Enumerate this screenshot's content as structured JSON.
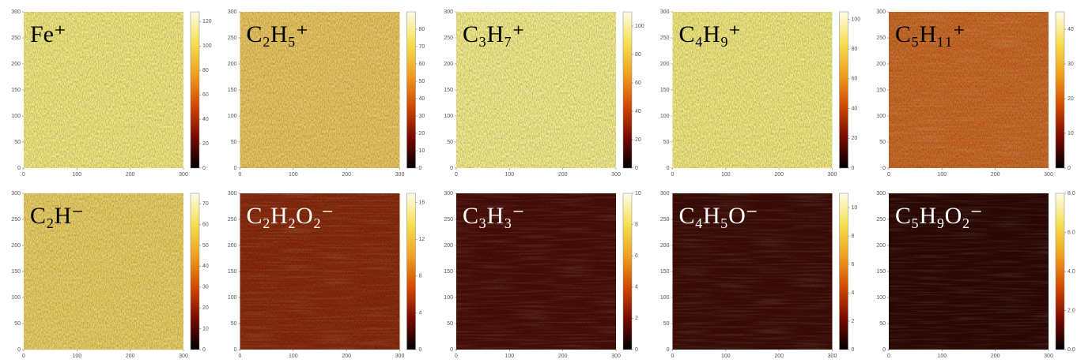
{
  "colormap": [
    "#000000",
    "#7a0a00",
    "#d24a00",
    "#f0a020",
    "#f5e050",
    "#fffbe8"
  ],
  "chart_data": [
    {
      "type": "heatmap",
      "title": "Fe⁺",
      "title_color": "#000000",
      "color": "#f4ea80",
      "xlim": [
        0,
        300
      ],
      "xticks": [
        0,
        100,
        200,
        300
      ],
      "ylim": [
        0,
        300
      ],
      "yticks": [
        0,
        50,
        100,
        150,
        200,
        250,
        300
      ],
      "clim": [
        0,
        128
      ],
      "cticks": [
        0,
        20,
        40,
        60,
        80,
        100,
        120
      ]
    },
    {
      "type": "heatmap",
      "title": "C₂H₅⁺",
      "title_color": "#000000",
      "color": "#ecc760",
      "xlim": [
        0,
        300
      ],
      "xticks": [
        0,
        100,
        200,
        300
      ],
      "ylim": [
        0,
        300
      ],
      "yticks": [
        0,
        50,
        100,
        150,
        200,
        250,
        300
      ],
      "clim": [
        0,
        90
      ],
      "cticks": [
        0,
        10,
        20,
        30,
        40,
        50,
        60,
        70,
        80
      ]
    },
    {
      "type": "heatmap",
      "title": "C₃H₇⁺",
      "title_color": "#000000",
      "color": "#f6ee8c",
      "xlim": [
        0,
        300
      ],
      "xticks": [
        0,
        100,
        200,
        300
      ],
      "ylim": [
        0,
        300
      ],
      "yticks": [
        0,
        50,
        100,
        150,
        200,
        250,
        300
      ],
      "clim": [
        0,
        110
      ],
      "cticks": [
        0,
        20,
        40,
        60,
        80,
        100
      ]
    },
    {
      "type": "heatmap",
      "title": "C₄H₉⁺",
      "title_color": "#000000",
      "color": "#f4ea80",
      "xlim": [
        0,
        300
      ],
      "xticks": [
        0,
        100,
        200,
        300
      ],
      "ylim": [
        0,
        300
      ],
      "yticks": [
        0,
        50,
        100,
        150,
        200,
        250,
        300
      ],
      "clim": [
        0,
        105
      ],
      "cticks": [
        0,
        20,
        40,
        60,
        80,
        100
      ]
    },
    {
      "type": "heatmap",
      "title": "C₅H₁₁⁺",
      "title_color": "#000000",
      "color": "#cc6a26",
      "xlim": [
        0,
        300
      ],
      "xticks": [
        0,
        100,
        200,
        300
      ],
      "ylim": [
        0,
        300
      ],
      "yticks": [
        0,
        50,
        100,
        150,
        200,
        250,
        300
      ],
      "clim": [
        0,
        45
      ],
      "cticks": [
        0,
        10,
        20,
        30,
        40
      ]
    },
    {
      "type": "heatmap",
      "title": "C₂H⁻",
      "title_color": "#000000",
      "color": "#ecd064",
      "xlim": [
        0,
        300
      ],
      "xticks": [
        0,
        100,
        200,
        300
      ],
      "ylim": [
        0,
        300
      ],
      "yticks": [
        0,
        50,
        100,
        150,
        200,
        250,
        300
      ],
      "clim": [
        0,
        75
      ],
      "cticks": [
        0,
        10,
        20,
        30,
        40,
        50,
        60,
        70
      ]
    },
    {
      "type": "heatmap",
      "title": "C₂H₂O₂⁻",
      "title_color": "#ffffff",
      "color": "#8a2a0c",
      "xlim": [
        0,
        300
      ],
      "xticks": [
        0,
        100,
        200,
        300
      ],
      "ylim": [
        0,
        300
      ],
      "yticks": [
        0,
        50,
        100,
        150,
        200,
        250,
        300
      ],
      "clim": [
        0,
        17
      ],
      "cticks": [
        0,
        4,
        8,
        12,
        16
      ]
    },
    {
      "type": "heatmap",
      "title": "C₃H₃⁻",
      "title_color": "#ffffff",
      "color": "#4a0e06",
      "xlim": [
        0,
        300
      ],
      "xticks": [
        0,
        100,
        200,
        300
      ],
      "ylim": [
        0,
        300
      ],
      "yticks": [
        0,
        50,
        100,
        150,
        200,
        250,
        300
      ],
      "clim": [
        0,
        10
      ],
      "cticks": [
        0,
        2,
        4,
        6,
        8,
        10
      ]
    },
    {
      "type": "heatmap",
      "title": "C₄H₅O⁻",
      "title_color": "#ffffff",
      "color": "#3e0c05",
      "xlim": [
        0,
        300
      ],
      "xticks": [
        0,
        100,
        200,
        300
      ],
      "ylim": [
        0,
        300
      ],
      "yticks": [
        0,
        50,
        100,
        150,
        200,
        250,
        300
      ],
      "clim": [
        0,
        11
      ],
      "cticks": [
        0,
        2,
        4,
        6,
        8,
        10
      ]
    },
    {
      "type": "heatmap",
      "title": "C₅H₉O₂⁻",
      "title_color": "#ffffff",
      "color": "#2e0804",
      "xlim": [
        0,
        300
      ],
      "xticks": [
        0,
        100,
        200,
        300
      ],
      "ylim": [
        0,
        300
      ],
      "yticks": [
        0,
        50,
        100,
        150,
        200,
        250,
        300
      ],
      "clim": [
        0,
        8
      ],
      "cticks": [
        {
          "value": 0,
          "label": "0.0"
        },
        {
          "value": 2,
          "label": "2.0"
        },
        {
          "value": 4,
          "label": "4.0"
        },
        {
          "value": 6,
          "label": "6.0"
        },
        {
          "value": 8,
          "label": "8.0"
        }
      ]
    }
  ]
}
